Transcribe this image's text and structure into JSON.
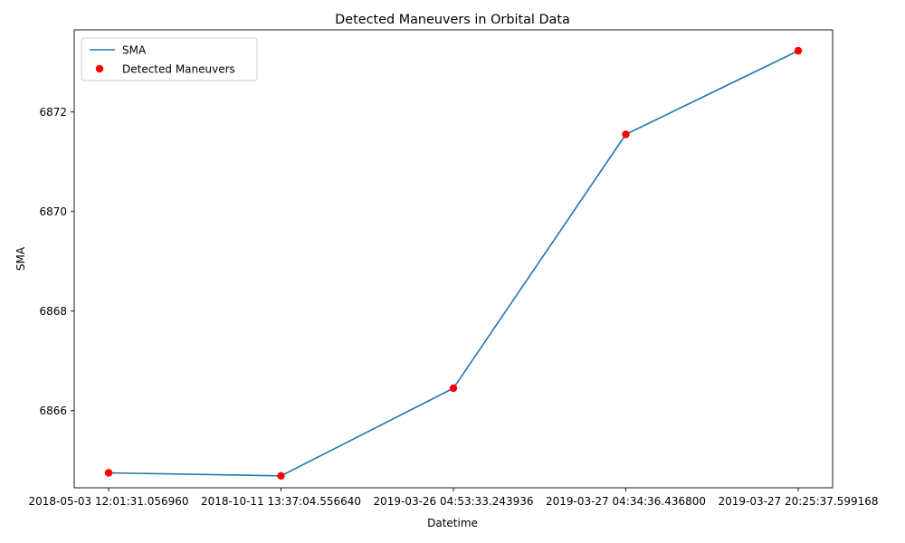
{
  "chart_data": {
    "type": "line",
    "title": "Detected Maneuvers in Orbital Data",
    "xlabel": "Datetime",
    "ylabel": "SMA",
    "categories": [
      "2018-05-03 12:01:31.056960",
      "2018-10-11 13:37:04.556640",
      "2019-03-26 04:53:33.243936",
      "2019-03-27 04:34:36.436800",
      "2019-03-27 20:25:37.599168"
    ],
    "ylim": [
      6864.45,
      6873.65
    ],
    "yticks": [
      6866,
      6868,
      6870,
      6872
    ],
    "y_tick_labels": [
      "6866",
      "6868",
      "6870",
      "6872"
    ],
    "grid": false,
    "legend_position": "top-left",
    "series": [
      {
        "name": "SMA",
        "kind": "line",
        "color": "#1f77b4",
        "values": [
          6864.75,
          6864.69,
          6866.45,
          6871.55,
          6873.23
        ]
      },
      {
        "name": "Detected Maneuvers",
        "kind": "scatter",
        "color": "#ff0000",
        "values": [
          6864.75,
          6864.69,
          6866.45,
          6871.55,
          6873.23
        ]
      }
    ]
  }
}
